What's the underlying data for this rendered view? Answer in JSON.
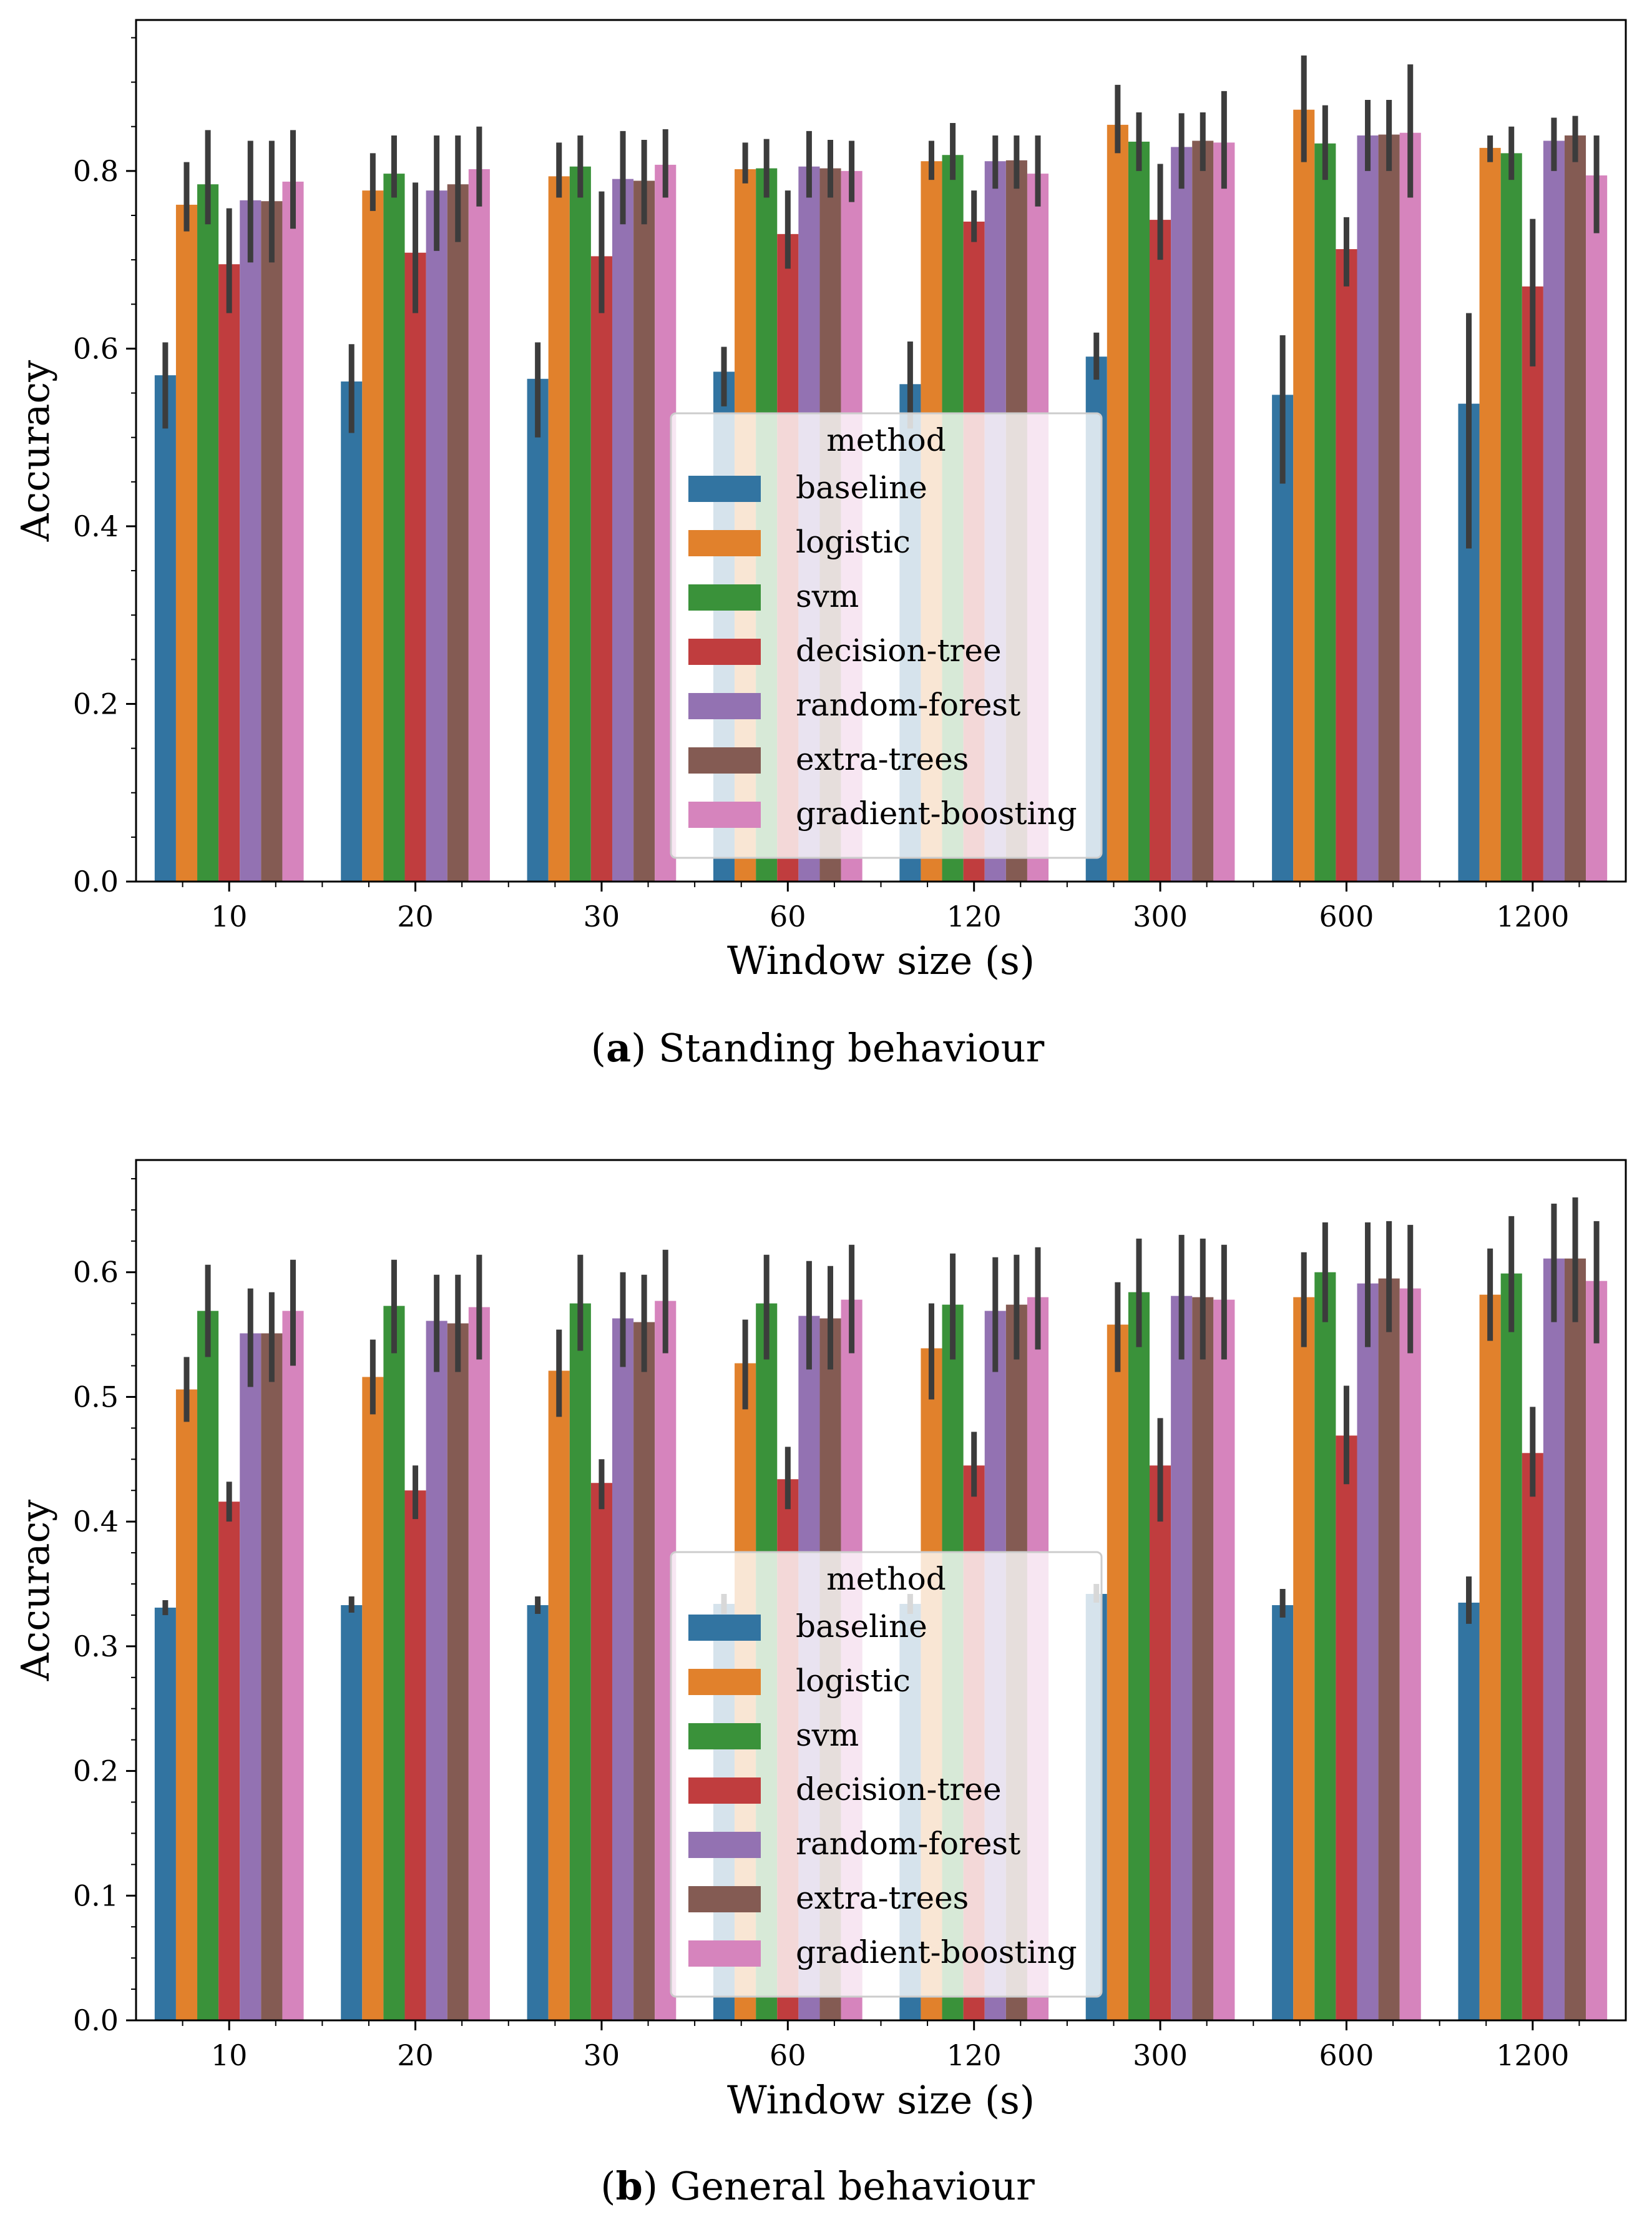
{
  "chart_data": [
    {
      "type": "bar",
      "caption_letter": "a",
      "caption_text": "Standing behaviour",
      "xlabel": "Window size (s)",
      "ylabel": "Accuracy",
      "ylim": [
        0,
        0.97
      ],
      "yticks": [
        "0.0",
        "0.2",
        "0.4",
        "0.6",
        "0.8"
      ],
      "categories": [
        "10",
        "20",
        "30",
        "60",
        "120",
        "300",
        "600",
        "1200"
      ],
      "legend_title": "method",
      "legend_position": "center",
      "series": [
        {
          "name": "baseline",
          "color": "#3274a1",
          "values": [
            0.57,
            0.563,
            0.566,
            0.574,
            0.56,
            0.591,
            0.548,
            0.538
          ],
          "err": [
            [
              0.51,
              0.607
            ],
            [
              0.505,
              0.605
            ],
            [
              0.5,
              0.607
            ],
            [
              0.535,
              0.602
            ],
            [
              0.51,
              0.608
            ],
            [
              0.565,
              0.618
            ],
            [
              0.448,
              0.615
            ],
            [
              0.375,
              0.64
            ]
          ]
        },
        {
          "name": "logistic",
          "color": "#e1812c",
          "values": [
            0.762,
            0.778,
            0.794,
            0.802,
            0.811,
            0.852,
            0.869,
            0.826
          ],
          "err": [
            [
              0.732,
              0.81
            ],
            [
              0.755,
              0.82
            ],
            [
              0.77,
              0.832
            ],
            [
              0.786,
              0.832
            ],
            [
              0.79,
              0.834
            ],
            [
              0.82,
              0.897
            ],
            [
              0.81,
              0.93
            ],
            [
              0.81,
              0.84
            ]
          ]
        },
        {
          "name": "svm",
          "color": "#3a923a",
          "values": [
            0.785,
            0.797,
            0.805,
            0.803,
            0.818,
            0.833,
            0.831,
            0.82
          ],
          "err": [
            [
              0.74,
              0.846
            ],
            [
              0.77,
              0.84
            ],
            [
              0.77,
              0.84
            ],
            [
              0.77,
              0.836
            ],
            [
              0.79,
              0.854
            ],
            [
              0.8,
              0.866
            ],
            [
              0.79,
              0.874
            ],
            [
              0.79,
              0.85
            ]
          ]
        },
        {
          "name": "decision-tree",
          "color": "#c03d3e",
          "values": [
            0.695,
            0.708,
            0.704,
            0.729,
            0.743,
            0.745,
            0.712,
            0.67
          ],
          "err": [
            [
              0.64,
              0.758
            ],
            [
              0.64,
              0.787
            ],
            [
              0.64,
              0.777
            ],
            [
              0.69,
              0.778
            ],
            [
              0.72,
              0.778
            ],
            [
              0.7,
              0.808
            ],
            [
              0.67,
              0.748
            ],
            [
              0.58,
              0.746
            ]
          ]
        },
        {
          "name": "random-forest",
          "color": "#9372b2",
          "values": [
            0.767,
            0.778,
            0.791,
            0.805,
            0.811,
            0.827,
            0.84,
            0.834
          ],
          "err": [
            [
              0.697,
              0.834
            ],
            [
              0.71,
              0.84
            ],
            [
              0.74,
              0.845
            ],
            [
              0.77,
              0.845
            ],
            [
              0.78,
              0.84
            ],
            [
              0.78,
              0.865
            ],
            [
              0.8,
              0.88
            ],
            [
              0.8,
              0.86
            ]
          ]
        },
        {
          "name": "extra-trees",
          "color": "#845b53",
          "values": [
            0.766,
            0.785,
            0.789,
            0.803,
            0.812,
            0.834,
            0.841,
            0.84
          ],
          "err": [
            [
              0.697,
              0.834
            ],
            [
              0.72,
              0.84
            ],
            [
              0.74,
              0.835
            ],
            [
              0.77,
              0.835
            ],
            [
              0.78,
              0.84
            ],
            [
              0.8,
              0.866
            ],
            [
              0.8,
              0.88
            ],
            [
              0.81,
              0.862
            ]
          ]
        },
        {
          "name": "gradient-boosting",
          "color": "#d684bd",
          "values": [
            0.788,
            0.802,
            0.807,
            0.8,
            0.797,
            0.832,
            0.843,
            0.795
          ],
          "err": [
            [
              0.735,
              0.846
            ],
            [
              0.76,
              0.85
            ],
            [
              0.77,
              0.847
            ],
            [
              0.765,
              0.834
            ],
            [
              0.76,
              0.84
            ],
            [
              0.78,
              0.89
            ],
            [
              0.77,
              0.92
            ],
            [
              0.73,
              0.84
            ]
          ]
        }
      ]
    },
    {
      "type": "bar",
      "caption_letter": "b",
      "caption_text": "General behaviour",
      "xlabel": "Window size (s)",
      "ylabel": "Accuracy",
      "ylim": [
        0,
        0.69
      ],
      "yticks": [
        "0.0",
        "0.1",
        "0.2",
        "0.3",
        "0.4",
        "0.5",
        "0.6"
      ],
      "categories": [
        "10",
        "20",
        "30",
        "60",
        "120",
        "300",
        "600",
        "1200"
      ],
      "legend_title": "method",
      "legend_position": "center",
      "series": [
        {
          "name": "baseline",
          "color": "#3274a1",
          "values": [
            0.331,
            0.333,
            0.333,
            0.334,
            0.334,
            0.342,
            0.333,
            0.335
          ],
          "err": [
            [
              0.325,
              0.337
            ],
            [
              0.327,
              0.34
            ],
            [
              0.326,
              0.34
            ],
            [
              0.326,
              0.342
            ],
            [
              0.326,
              0.342
            ],
            [
              0.335,
              0.35
            ],
            [
              0.323,
              0.346
            ],
            [
              0.318,
              0.356
            ]
          ]
        },
        {
          "name": "logistic",
          "color": "#e1812c",
          "values": [
            0.506,
            0.516,
            0.521,
            0.527,
            0.539,
            0.558,
            0.58,
            0.582
          ],
          "err": [
            [
              0.48,
              0.532
            ],
            [
              0.486,
              0.546
            ],
            [
              0.484,
              0.554
            ],
            [
              0.49,
              0.562
            ],
            [
              0.498,
              0.575
            ],
            [
              0.52,
              0.592
            ],
            [
              0.54,
              0.616
            ],
            [
              0.545,
              0.619
            ]
          ]
        },
        {
          "name": "svm",
          "color": "#3a923a",
          "values": [
            0.569,
            0.573,
            0.575,
            0.575,
            0.574,
            0.584,
            0.6,
            0.599
          ],
          "err": [
            [
              0.532,
              0.606
            ],
            [
              0.535,
              0.61
            ],
            [
              0.537,
              0.614
            ],
            [
              0.53,
              0.614
            ],
            [
              0.53,
              0.615
            ],
            [
              0.54,
              0.627
            ],
            [
              0.56,
              0.64
            ],
            [
              0.552,
              0.645
            ]
          ]
        },
        {
          "name": "decision-tree",
          "color": "#c03d3e",
          "values": [
            0.416,
            0.425,
            0.431,
            0.434,
            0.445,
            0.445,
            0.469,
            0.455
          ],
          "err": [
            [
              0.4,
              0.432
            ],
            [
              0.402,
              0.445
            ],
            [
              0.41,
              0.45
            ],
            [
              0.41,
              0.46
            ],
            [
              0.42,
              0.472
            ],
            [
              0.4,
              0.483
            ],
            [
              0.43,
              0.509
            ],
            [
              0.42,
              0.492
            ]
          ]
        },
        {
          "name": "random-forest",
          "color": "#9372b2",
          "values": [
            0.551,
            0.561,
            0.563,
            0.565,
            0.569,
            0.581,
            0.591,
            0.611
          ],
          "err": [
            [
              0.508,
              0.587
            ],
            [
              0.52,
              0.598
            ],
            [
              0.524,
              0.6
            ],
            [
              0.522,
              0.609
            ],
            [
              0.52,
              0.612
            ],
            [
              0.53,
              0.63
            ],
            [
              0.54,
              0.64
            ],
            [
              0.56,
              0.655
            ]
          ]
        },
        {
          "name": "extra-trees",
          "color": "#845b53",
          "values": [
            0.551,
            0.559,
            0.56,
            0.563,
            0.574,
            0.58,
            0.595,
            0.611
          ],
          "err": [
            [
              0.512,
              0.584
            ],
            [
              0.52,
              0.598
            ],
            [
              0.52,
              0.598
            ],
            [
              0.522,
              0.605
            ],
            [
              0.53,
              0.614
            ],
            [
              0.53,
              0.627
            ],
            [
              0.552,
              0.641
            ],
            [
              0.56,
              0.66
            ]
          ]
        },
        {
          "name": "gradient-boosting",
          "color": "#d684bd",
          "values": [
            0.569,
            0.572,
            0.577,
            0.578,
            0.58,
            0.578,
            0.587,
            0.593
          ],
          "err": [
            [
              0.525,
              0.61
            ],
            [
              0.53,
              0.614
            ],
            [
              0.535,
              0.618
            ],
            [
              0.535,
              0.622
            ],
            [
              0.538,
              0.62
            ],
            [
              0.53,
              0.622
            ],
            [
              0.535,
              0.638
            ],
            [
              0.543,
              0.641
            ]
          ]
        }
      ]
    }
  ]
}
